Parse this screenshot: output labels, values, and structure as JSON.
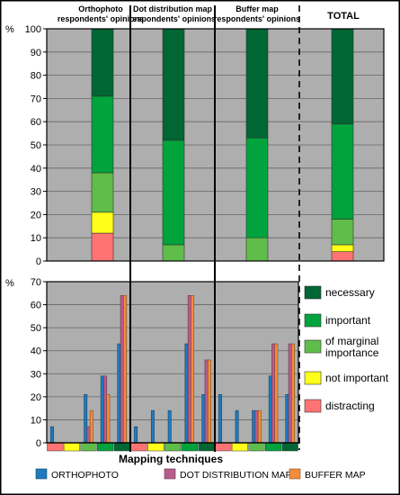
{
  "chart_data": [
    {
      "type": "bar",
      "stacked": true,
      "ylabel": "%",
      "ylim": [
        0,
        100
      ],
      "yticks": [
        0,
        10,
        20,
        30,
        40,
        50,
        60,
        70,
        80,
        90,
        100
      ],
      "panels": [
        "Orthophoto respondents' opinions",
        "Dot distribution map respondents' opinions",
        "Buffer map respondents' opinions",
        "TOTAL"
      ],
      "segments": [
        "distracting",
        "not important",
        "of marginal importance",
        "important",
        "necessary"
      ],
      "values": [
        [
          12,
          9,
          17,
          33,
          29
        ],
        [
          0,
          0,
          7,
          45,
          48
        ],
        [
          0,
          0,
          10,
          43,
          47
        ],
        [
          4,
          3,
          11,
          41,
          41
        ]
      ]
    },
    {
      "type": "bar",
      "grouped": true,
      "ylabel": "%",
      "ylim": [
        0,
        70
      ],
      "yticks": [
        0,
        10,
        20,
        30,
        40,
        50,
        60,
        70
      ],
      "xlabel": "Mapping techniques",
      "panels": [
        "Orthophoto",
        "Dot distribution map",
        "Buffer map"
      ],
      "categories": [
        "distracting",
        "not important",
        "of marginal importance",
        "important",
        "necessary"
      ],
      "series": [
        {
          "name": "ORTHOPHOTO",
          "values": [
            [
              7,
              0,
              21,
              29,
              43
            ],
            [
              7,
              14,
              14,
              43,
              21
            ],
            [
              21,
              14,
              14,
              29,
              21
            ]
          ]
        },
        {
          "name": "DOT DISTRIBUTION MAP",
          "values": [
            [
              0,
              0,
              7,
              29,
              64
            ],
            [
              0,
              0,
              0,
              64,
              36
            ],
            [
              0,
              0,
              14,
              43,
              43
            ]
          ]
        },
        {
          "name": "BUFFER MAP",
          "values": [
            [
              0,
              0,
              14,
              21,
              64
            ],
            [
              0,
              0,
              0,
              64,
              36
            ],
            [
              0,
              0,
              14,
              43,
              43
            ]
          ]
        }
      ]
    }
  ],
  "top": {
    "titles": [
      [
        "Orthophoto",
        "respondents' opinions"
      ],
      [
        "Dot distribution map",
        "respondents' opinions"
      ],
      [
        "Buffer map",
        "respondents' opinions"
      ],
      [
        "TOTAL"
      ]
    ],
    "y_unit": "%"
  },
  "bottom": {
    "y_unit": "%",
    "x_title": "Mapping techniques"
  },
  "legend": {
    "items": [
      "necessary",
      "important",
      "of marginal importance",
      "not important",
      "distracting"
    ],
    "colors": [
      "#006633",
      "#00a33c",
      "#5fbd4a",
      "#ffff1a",
      "#ff7373"
    ]
  },
  "series_colors": [
    "#1f7bbf",
    "#b85c8a",
    "#f38c3c"
  ]
}
